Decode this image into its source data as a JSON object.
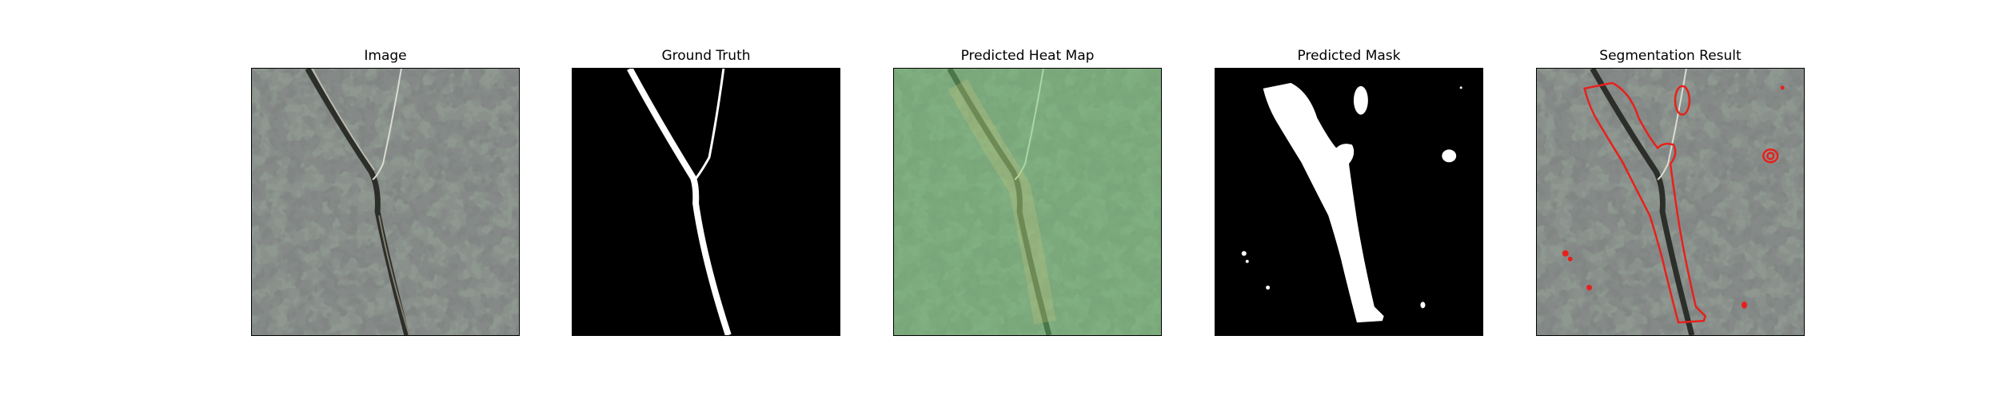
{
  "figure": {
    "panels": [
      {
        "title": "Image",
        "icon": "leaf-crack-photo"
      },
      {
        "title": "Ground Truth",
        "icon": "binary-mask-ground-truth"
      },
      {
        "title": "Predicted Heat Map",
        "icon": "green-heatmap-overlay"
      },
      {
        "title": "Predicted Mask",
        "icon": "binary-mask-prediction"
      },
      {
        "title": "Segmentation Result",
        "icon": "red-contour-overlay"
      }
    ],
    "colors": {
      "background": "#ffffff",
      "surface_gray": "#8e9890",
      "blotch_dark": "#3b3f3d",
      "mask_white": "#ffffff",
      "mask_black": "#000000",
      "heatmap_green": "#7cc47f",
      "contour_red": "#e8201c"
    }
  }
}
